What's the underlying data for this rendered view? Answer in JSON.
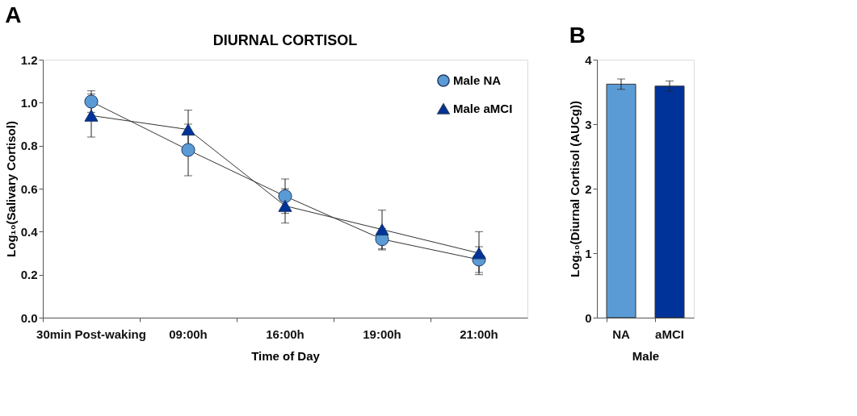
{
  "chart_data": [
    {
      "type": "line",
      "title": "DIURNAL CORTISOL",
      "annotations": [
        "A"
      ],
      "xlabel": "Time of Day",
      "ylabel": "Log₁₀(Salivary Cortisol)",
      "categories": [
        "30min Post-waking",
        "09:00h",
        "16:00h",
        "19:00h",
        "21:00h"
      ],
      "series": [
        {
          "name": "Male NA",
          "color": "#5b9bd5",
          "marker": "circle",
          "values": [
            1.005,
            0.78,
            0.565,
            0.365,
            0.27
          ],
          "errors": [
            0.05,
            0.12,
            0.08,
            0.05,
            0.06
          ]
        },
        {
          "name": "Male aMCI",
          "color": "#003399",
          "marker": "triangle",
          "values": [
            0.94,
            0.875,
            0.52,
            0.41,
            0.3
          ],
          "errors": [
            0.1,
            0.09,
            0.08,
            0.09,
            0.1
          ]
        }
      ],
      "ylim": [
        0,
        1.2
      ],
      "yticks": [
        {
          "value": 0,
          "label": "0.0"
        },
        0.2,
        0.4,
        0.6,
        0.8,
        {
          "value": 1,
          "label": "1.0"
        },
        1.2
      ],
      "grid": false,
      "legend": "top right",
      "line_style": "solid"
    },
    {
      "type": "bar",
      "annotations": [
        "B"
      ],
      "xlabel": "Male",
      "ylabel": "Log₁₀(Diurnal Cortisol (AUCg))",
      "categories": [
        "NA",
        "aMCI"
      ],
      "values": [
        3.62,
        3.59
      ],
      "errors": [
        0.08,
        0.08
      ],
      "colors": [
        "#5b9bd5",
        "#003399"
      ],
      "ylim": [
        0,
        4
      ],
      "yticks": [
        0,
        1,
        2,
        3,
        4
      ],
      "grid": false,
      "legend": false
    }
  ]
}
